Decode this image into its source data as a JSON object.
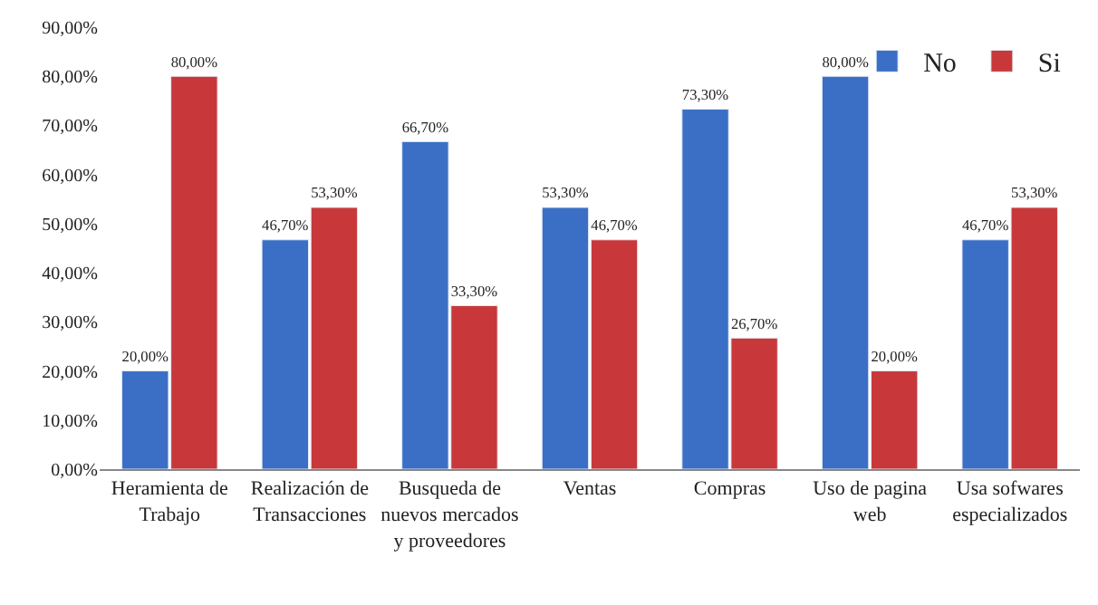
{
  "chart_data": {
    "type": "bar",
    "categories": [
      "Heramienta de Trabajo",
      "Realización de Transacciones",
      "Busqueda de nuevos mercados y proveedores",
      "Ventas",
      "Compras",
      "Uso de pagina web",
      "Usa sofwares especializados"
    ],
    "series": [
      {
        "name": "No",
        "color": "#3b6fc6",
        "values": [
          20,
          46.7,
          66.7,
          53.3,
          73.3,
          80,
          46.7
        ],
        "value_labels": [
          "20,00%",
          "46,70%",
          "66,70%",
          "53,30%",
          "73,30%",
          "80,00%",
          "46,70%"
        ]
      },
      {
        "name": "Si",
        "color": "#c8383a",
        "values": [
          80,
          53.3,
          33.3,
          46.7,
          26.7,
          20,
          53.3
        ],
        "value_labels": [
          "80,00%",
          "53,30%",
          "33,30%",
          "46,70%",
          "26,70%",
          "20,00%",
          "53,30%"
        ]
      }
    ],
    "ylim": [
      0,
      90
    ],
    "yticks": [
      {
        "value": 0,
        "label": "0,00%"
      },
      {
        "value": 10,
        "label": "10,00%"
      },
      {
        "value": 20,
        "label": "20,00%"
      },
      {
        "value": 30,
        "label": "30,00%"
      },
      {
        "value": 40,
        "label": "40,00%"
      },
      {
        "value": 50,
        "label": "50,00%"
      },
      {
        "value": 60,
        "label": "60,00%"
      },
      {
        "value": 70,
        "label": "70,00%"
      },
      {
        "value": 80,
        "label": "80,00%"
      },
      {
        "value": 90,
        "label": "90,00%"
      }
    ],
    "grid": false,
    "legend": "top right"
  }
}
